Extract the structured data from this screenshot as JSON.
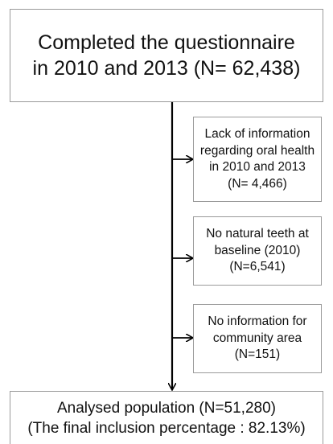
{
  "flowchart": {
    "start": {
      "lines": [
        "Completed the questionnaire",
        "in 2010 and 2013 (N= 62,438)"
      ]
    },
    "exclusions": [
      {
        "lines": [
          "Lack of information",
          "regarding oral health",
          "in 2010 and 2013",
          "(N= 4,466)"
        ]
      },
      {
        "lines": [
          "No natural teeth at",
          "baseline (2010)",
          "(N=6,541)"
        ]
      },
      {
        "lines": [
          "No information for",
          "community area",
          "(N=151)"
        ]
      }
    ],
    "end": {
      "lines": [
        "Analysed population  (N=51,280)",
        "(The final inclusion percentage : 82.13%)"
      ]
    }
  }
}
